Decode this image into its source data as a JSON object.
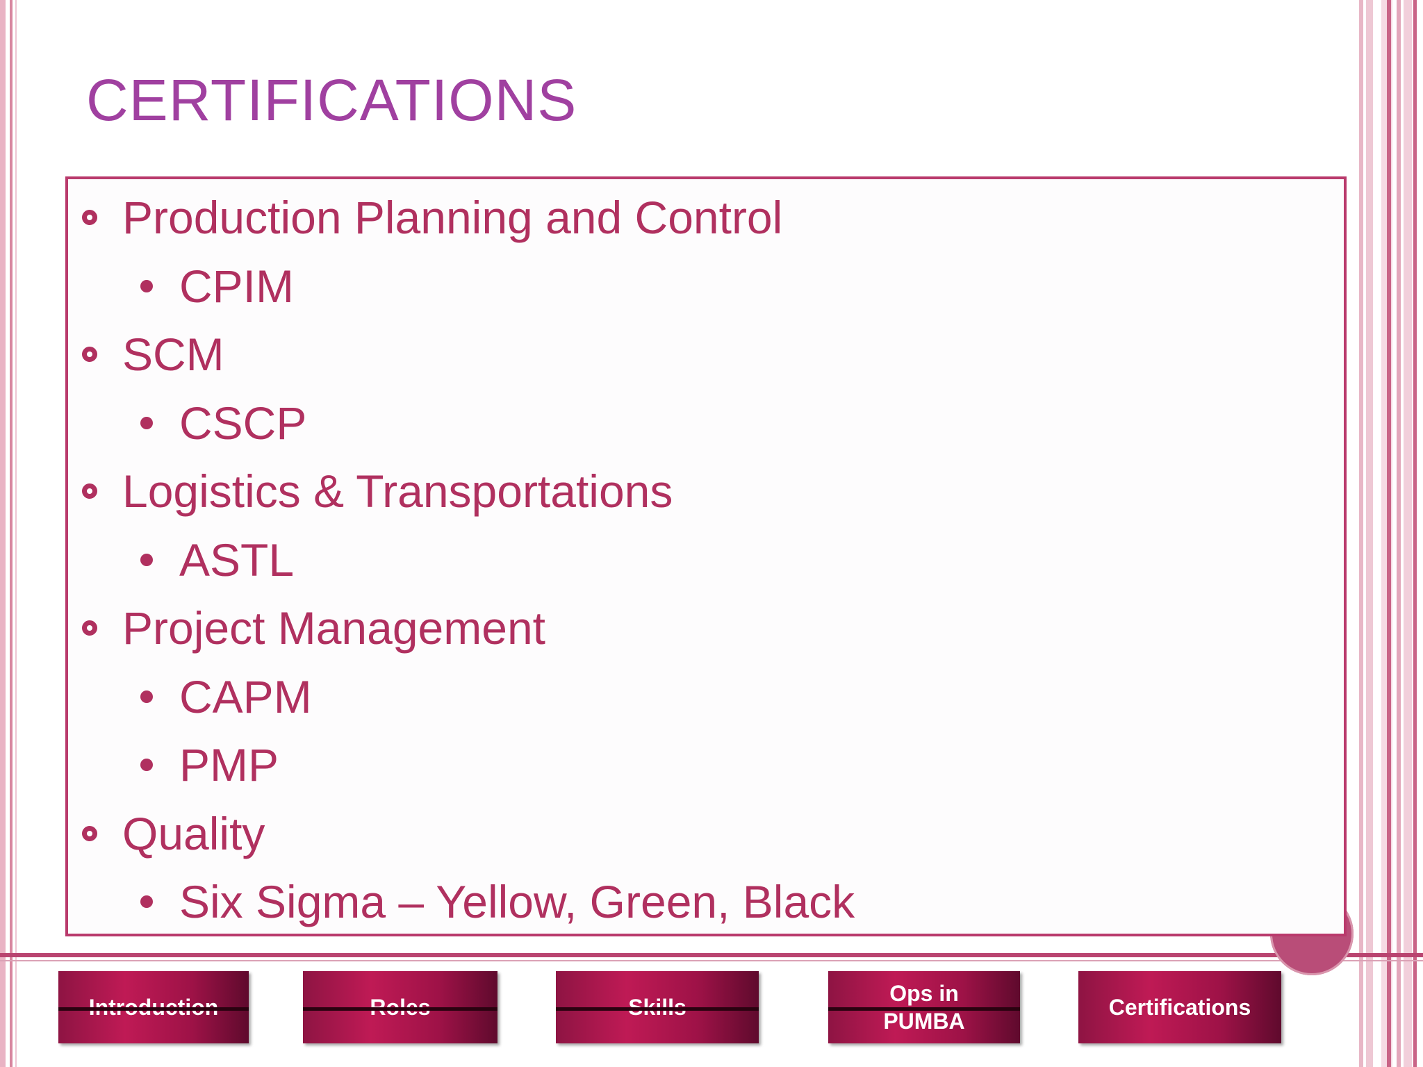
{
  "slide": {
    "title": "CERTIFICATIONS",
    "items": [
      {
        "level": 1,
        "text": "Production Planning and Control"
      },
      {
        "level": 2,
        "text": "CPIM"
      },
      {
        "level": 1,
        "text": "SCM"
      },
      {
        "level": 2,
        "text": "CSCP"
      },
      {
        "level": 1,
        "text": "Logistics & Transportations"
      },
      {
        "level": 2,
        "text": "ASTL"
      },
      {
        "level": 1,
        "text": "Project Management"
      },
      {
        "level": 2,
        "text": "CAPM"
      },
      {
        "level": 2,
        "text": "PMP"
      },
      {
        "level": 1,
        "text": "Quality"
      },
      {
        "level": 2,
        "text": "Six Sigma – Yellow, Green, Black"
      }
    ]
  },
  "nav": {
    "introduction": "Introduction",
    "roles": "Roles",
    "skills": "Skills",
    "ops_line1": "Ops in",
    "ops_line2": "PUMBA",
    "certifications": "Certifications"
  },
  "colors": {
    "title": "#a040a0",
    "text": "#b0305f",
    "accent": "#b93a6c",
    "button": "#bf1a55"
  }
}
